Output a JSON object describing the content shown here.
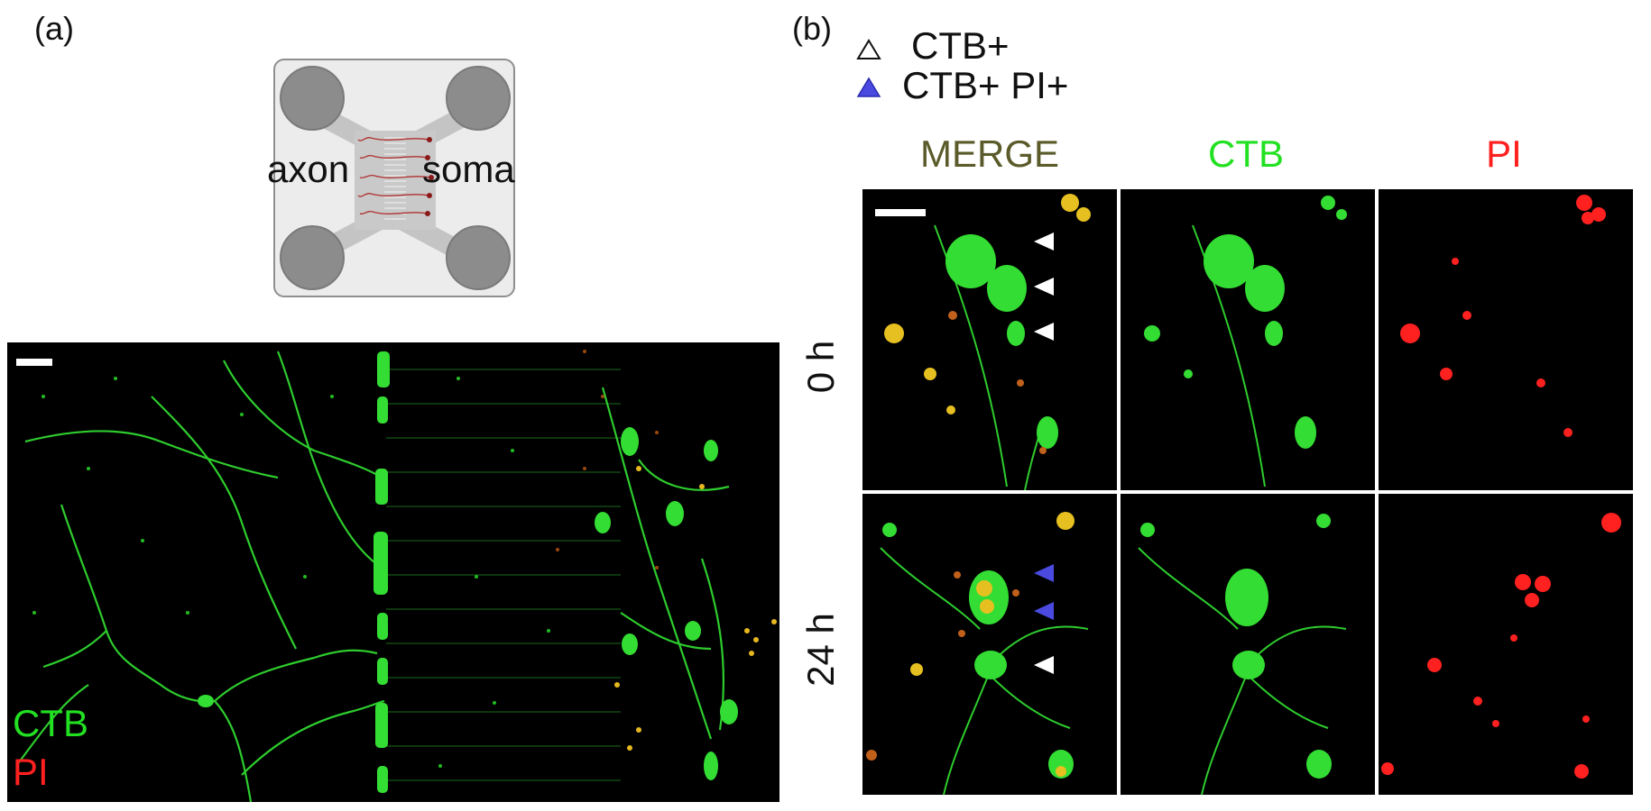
{
  "panel_a": {
    "label": "(a)",
    "schematic": {
      "left_label": "axon",
      "right_label": "soma"
    },
    "micrograph": {
      "stains": [
        {
          "name": "CTB",
          "color": "#22e022"
        },
        {
          "name": "PI",
          "color": "#ff2020"
        }
      ],
      "has_scale_bar": true
    }
  },
  "panel_b": {
    "label": "(b)",
    "legend": [
      {
        "symbol": "outline-triangle",
        "text": "CTB+"
      },
      {
        "symbol": "filled-blue-triangle",
        "color": "#4a4ae0",
        "text": "CTB+ PI+"
      }
    ],
    "columns": [
      {
        "label": "MERGE",
        "color": "#5a5a2a"
      },
      {
        "label": "CTB",
        "color": "#22e022"
      },
      {
        "label": "PI",
        "color": "#ff2020"
      }
    ],
    "rows": [
      {
        "label": "0 h",
        "markers": [
          "white",
          "white",
          "white"
        ]
      },
      {
        "label": "24 h",
        "markers": [
          "blue",
          "blue",
          "white"
        ]
      }
    ],
    "has_scale_bar": true
  }
}
